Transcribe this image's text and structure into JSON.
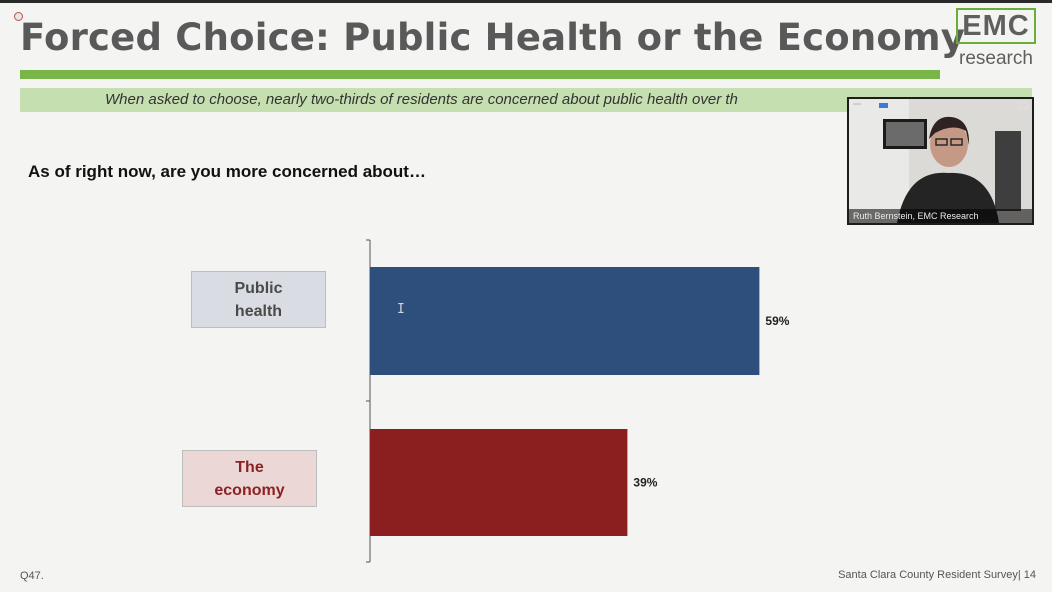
{
  "slide": {
    "title": "Forced Choice: Public Health or the Economy",
    "subtitle": "When asked to choose, nearly two-thirds of residents are concerned about public health over th",
    "question": "As of right now, are you more concerned about…",
    "footer_left": "Q47.",
    "footer_right": "Santa Clara County Resident Survey| 14"
  },
  "logo": {
    "main": "EMC",
    "sub": "research"
  },
  "video_overlay": {
    "participant_name": "Ruth Bernstein, EMC Research"
  },
  "categories": {
    "public_health": {
      "line1": "Public",
      "line2": "health"
    },
    "economy": {
      "line1": "The",
      "line2": "economy"
    }
  },
  "colors": {
    "accent_green": "#78b64a",
    "subtitle_band": "#c6dfb0",
    "public_health_bar": "#2e4f7c",
    "economy_bar": "#8b1e1e"
  },
  "chart_data": {
    "type": "bar",
    "orientation": "horizontal",
    "categories": [
      "Public health",
      "The economy"
    ],
    "values": [
      59,
      39
    ],
    "value_labels": [
      "59%",
      "39%"
    ],
    "xlim": [
      0,
      100
    ],
    "title": "",
    "xlabel": "",
    "ylabel": ""
  }
}
